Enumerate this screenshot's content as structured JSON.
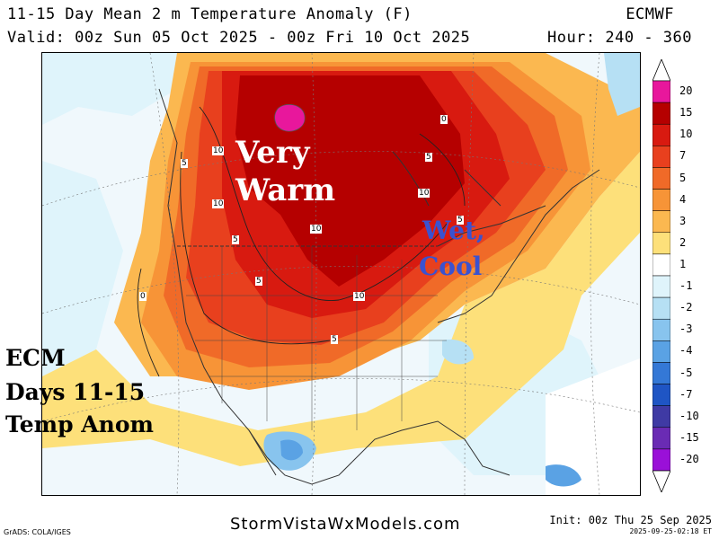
{
  "header": {
    "title": "11-15 Day Mean 2 m Temperature Anomaly (F)",
    "valid": "Valid: 00z Sun 05 Oct 2025 - 00z Fri 10 Oct 2025",
    "model": "ECMWF",
    "hour": "Hour: 240 - 360"
  },
  "annotations": {
    "warm_line1": "Very",
    "warm_line2": "Warm",
    "cool_line1": "Wet,",
    "cool_line2": "Cool",
    "ecm_line1": "ECM",
    "ecm_line2": "Days 11-15",
    "ecm_line3": "Temp Anom"
  },
  "contour_labels": [
    "10",
    "5",
    "10",
    "5",
    "10",
    "10",
    "5",
    "5",
    "5",
    "10",
    "5",
    "0",
    "0"
  ],
  "colorbar": {
    "ticks": [
      "20",
      "15",
      "10",
      "7",
      "5",
      "4",
      "3",
      "2",
      "1",
      "-1",
      "-2",
      "-3",
      "-4",
      "-5",
      "-7",
      "-10",
      "-15",
      "-20"
    ],
    "colors": [
      "#e8179c",
      "#b50000",
      "#d81a10",
      "#e8401e",
      "#f06a28",
      "#f79437",
      "#fbb850",
      "#fde07a",
      "#ffffff",
      "#dff4fb",
      "#b6e0f4",
      "#88c4ee",
      "#5aa2e4",
      "#3478d6",
      "#1f55c4",
      "#3f3aa4",
      "#6a2bb4",
      "#9a10d8"
    ]
  },
  "footer": {
    "site": "StormVistaWxModels.com",
    "grads": "GrADS: COLA/IGES",
    "init": "Init: 00z Thu 25 Sep 2025",
    "stamp": "2025-09-25-02:18 ET"
  }
}
